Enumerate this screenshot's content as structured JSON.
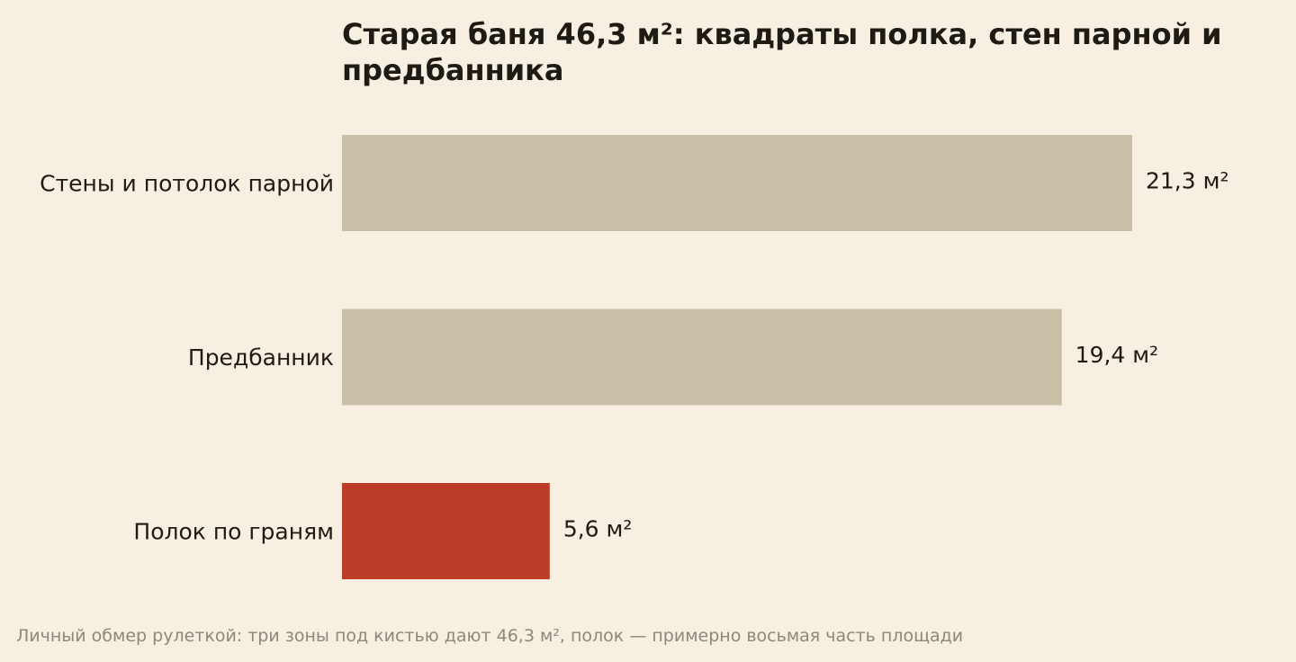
{
  "chart_data": {
    "type": "bar",
    "orientation": "horizontal",
    "title": "Старая баня 46,3 м²: квадраты полка, стен парной и предбанника",
    "categories": [
      "Стены и потолок парной",
      "Предбанник",
      "Полок по граням"
    ],
    "values": [
      21.3,
      19.4,
      5.6
    ],
    "value_labels": [
      "21,3 м²",
      "19,4 м²",
      "5,6 м²"
    ],
    "unit": "м²",
    "xlim": [
      0,
      24
    ],
    "grid": false,
    "legend": "none",
    "colors": [
      "#c9bfa6",
      "#c9bfa6",
      "#bb3d28"
    ],
    "highlight_category": "Полок по граням",
    "note": "Личный обмер рулеткой: три зоны под кистью дают 46,3 м², полок — примерно восьмая часть площади"
  },
  "colors": {
    "background": "#f6efe2",
    "bar_default": "#c9bfa6",
    "bar_highlight": "#bb3d28",
    "text": "#1e1a14",
    "note_text": "#8e877a"
  }
}
